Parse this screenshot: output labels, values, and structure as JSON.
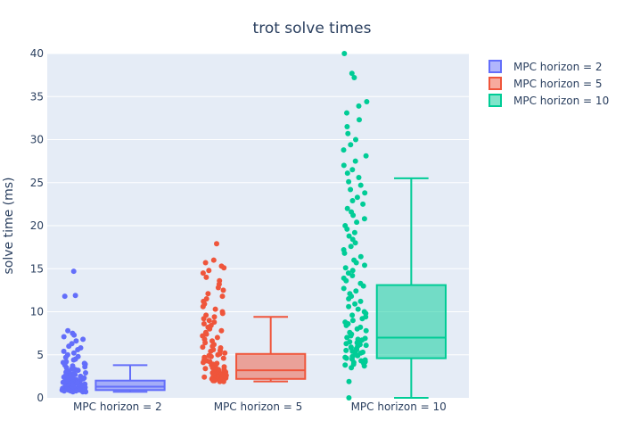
{
  "chart_data": {
    "type": "box",
    "title": "trot solve times",
    "ylabel": "solve time (ms)",
    "xlabel": "",
    "ylim": [
      0,
      40
    ],
    "yticks": [
      0,
      5,
      10,
      15,
      20,
      25,
      30,
      35,
      40
    ],
    "grid": true,
    "legend_position": "top-right",
    "categories": [
      "MPC horizon = 2",
      "MPC horizon = 5",
      "MPC horizon = 10"
    ],
    "series": [
      {
        "name": "MPC horizon = 2",
        "color": "#636efa",
        "box": {
          "lower_whisker": 0.7,
          "q1": 0.9,
          "median": 1.3,
          "q3": 2.0,
          "upper_whisker": 3.8
        },
        "points": [
          14.7,
          11.9,
          11.8,
          7.8,
          7.5,
          7.3,
          7.1,
          6.8,
          6.6,
          6.3,
          6.0,
          5.8,
          5.6,
          5.4,
          5.2,
          5.0,
          4.8,
          4.7,
          4.5,
          4.4,
          4.2,
          4.1,
          4.0,
          3.9,
          3.8,
          3.7,
          3.6,
          3.5,
          3.4,
          3.3,
          3.2,
          3.1,
          3.0,
          2.9,
          2.8,
          2.8,
          2.7,
          2.6,
          2.6,
          2.5,
          2.5,
          2.4,
          2.4,
          2.3,
          2.3,
          2.2,
          2.2,
          2.1,
          2.1,
          2.0,
          2.0,
          1.9,
          1.9,
          1.9,
          1.8,
          1.8,
          1.8,
          1.7,
          1.7,
          1.7,
          1.6,
          1.6,
          1.6,
          1.5,
          1.5,
          1.5,
          1.5,
          1.4,
          1.4,
          1.4,
          1.4,
          1.3,
          1.3,
          1.3,
          1.3,
          1.2,
          1.2,
          1.2,
          1.2,
          1.1,
          1.1,
          1.1,
          1.1,
          1.0,
          1.0,
          1.0,
          1.0,
          0.9,
          0.9,
          0.9,
          0.9,
          0.8,
          0.8,
          0.8,
          0.8,
          0.7,
          0.7,
          0.7
        ]
      },
      {
        "name": "MPC horizon = 5",
        "color": "#ef553b",
        "box": {
          "lower_whisker": 1.9,
          "q1": 2.2,
          "median": 3.2,
          "q3": 5.1,
          "upper_whisker": 9.4
        },
        "points": [
          17.9,
          16.0,
          15.7,
          15.3,
          15.1,
          14.8,
          14.5,
          14.0,
          13.6,
          13.2,
          12.8,
          12.5,
          12.1,
          11.8,
          11.5,
          11.2,
          10.9,
          10.6,
          10.3,
          10.0,
          9.8,
          9.6,
          9.4,
          9.2,
          9.0,
          8.8,
          8.6,
          8.4,
          8.2,
          8.0,
          7.8,
          7.6,
          7.4,
          7.2,
          7.0,
          6.8,
          6.6,
          6.4,
          6.2,
          6.0,
          5.9,
          5.8,
          5.6,
          5.5,
          5.4,
          5.2,
          5.1,
          5.0,
          4.9,
          4.8,
          4.7,
          4.6,
          4.5,
          4.4,
          4.3,
          4.2,
          4.1,
          4.0,
          3.9,
          3.8,
          3.7,
          3.6,
          3.5,
          3.5,
          3.4,
          3.3,
          3.3,
          3.2,
          3.1,
          3.1,
          3.0,
          3.0,
          2.9,
          2.9,
          2.8,
          2.8,
          2.7,
          2.7,
          2.6,
          2.6,
          2.5,
          2.5,
          2.4,
          2.4,
          2.3,
          2.3,
          2.2,
          2.2,
          2.1,
          2.1,
          2.0,
          2.0,
          1.9,
          1.9
        ]
      },
      {
        "name": "MPC horizon = 10",
        "color": "#00cc96",
        "box": {
          "lower_whisker": 0.0,
          "q1": 4.6,
          "median": 7.0,
          "q3": 13.1,
          "upper_whisker": 25.5
        },
        "points": [
          40.0,
          37.7,
          37.2,
          34.4,
          33.9,
          33.1,
          32.3,
          31.5,
          30.7,
          30.0,
          29.4,
          28.8,
          28.1,
          27.5,
          27.0,
          26.5,
          26.1,
          25.6,
          25.1,
          24.7,
          24.2,
          23.8,
          23.3,
          22.9,
          22.5,
          22.0,
          21.6,
          21.2,
          20.8,
          20.4,
          20.0,
          19.6,
          19.2,
          18.8,
          18.4,
          18.0,
          17.6,
          17.2,
          16.8,
          16.4,
          16.0,
          15.7,
          15.4,
          15.1,
          14.8,
          14.5,
          14.2,
          13.9,
          13.6,
          13.3,
          13.0,
          12.7,
          12.4,
          12.1,
          11.8,
          11.5,
          11.2,
          10.9,
          10.6,
          10.3,
          10.0,
          9.8,
          9.6,
          9.4,
          9.2,
          9.0,
          8.8,
          8.6,
          8.4,
          8.2,
          8.0,
          7.8,
          7.6,
          7.4,
          7.2,
          7.0,
          6.9,
          6.8,
          6.7,
          6.6,
          6.5,
          6.4,
          6.3,
          6.2,
          6.1,
          6.0,
          5.9,
          5.8,
          5.7,
          5.6,
          5.5,
          5.4,
          5.3,
          5.2,
          5.1,
          5.0,
          4.9,
          4.8,
          4.7,
          4.6,
          4.5,
          4.4,
          4.3,
          4.2,
          4.1,
          4.0,
          3.9,
          3.8,
          3.7,
          3.5,
          1.9,
          0.0
        ]
      }
    ]
  }
}
